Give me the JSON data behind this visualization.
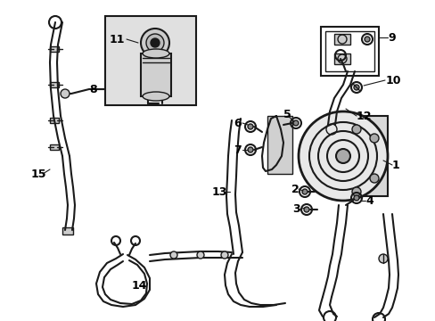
{
  "background_color": "#ffffff",
  "line_color": "#1a1a1a",
  "label_color": "#000000",
  "fig_width": 4.89,
  "fig_height": 3.6,
  "dpi": 100,
  "gray_fill": "#d8d8d8",
  "light_gray": "#e8e8e8",
  "box_fill": "#e0e0e0"
}
